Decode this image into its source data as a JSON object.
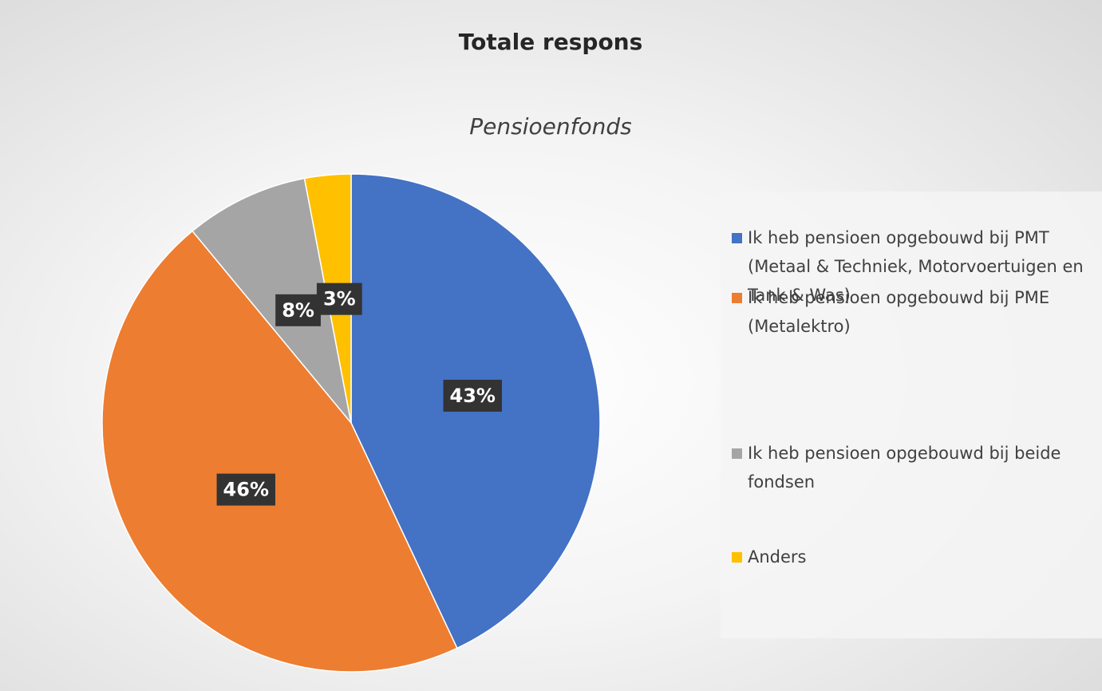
{
  "chart_data": {
    "type": "pie",
    "title": "Totale respons",
    "subtitle": "Pensioenfonds",
    "categories": [
      "Ik heb pensioen opgebouwd bij PMT (Metaal & Techniek, Motorvoertuigen en Tank & Was)",
      "Ik heb pensioen opgebouwd bij PME (Metalektro)",
      "Ik heb pensioen opgebouwd bij beide fondsen",
      "Anders"
    ],
    "values": [
      43,
      46,
      8,
      3
    ],
    "value_labels": [
      "43%",
      "46%",
      "8%",
      "3%"
    ],
    "colors": [
      "#4472c4",
      "#ed7d31",
      "#a5a5a5",
      "#ffc000"
    ],
    "legend": "right"
  }
}
